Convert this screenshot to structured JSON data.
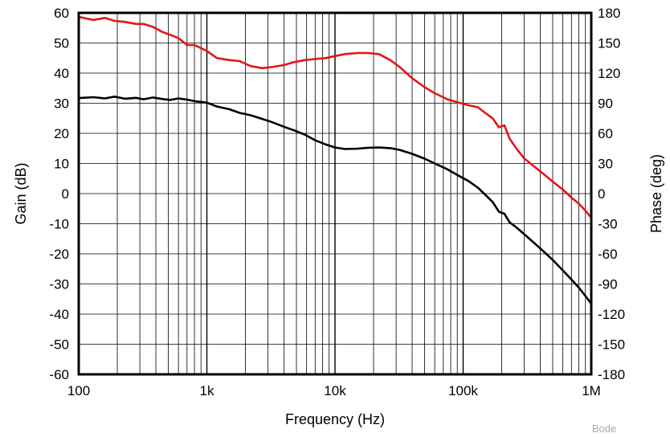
{
  "chart_data": {
    "type": "line",
    "title": "",
    "xlabel": "Frequency (Hz)",
    "ylabel": "Gain (dB)",
    "y2label": "Phase (deg)",
    "watermark": "Bode",
    "x_scale": "log",
    "xlim": [
      100,
      1000000
    ],
    "ylim": [
      -60,
      60
    ],
    "y2lim": [
      -180,
      180
    ],
    "grid": true,
    "x_ticks": [
      100,
      1000,
      10000,
      100000,
      1000000
    ],
    "x_tick_labels": [
      "100",
      "1k",
      "10k",
      "100k",
      "1M"
    ],
    "y_ticks": [
      60,
      50,
      40,
      30,
      20,
      10,
      0,
      -10,
      -20,
      -30,
      -40,
      -50,
      -60
    ],
    "y_tick_labels": [
      "60",
      "50",
      "40",
      "30",
      "20",
      "10",
      "0",
      "-10",
      "-20",
      "-30",
      "-40",
      "-50",
      "-60"
    ],
    "y2_ticks": [
      180,
      150,
      120,
      90,
      60,
      30,
      0,
      -30,
      -60,
      -90,
      -120,
      -150,
      -180
    ],
    "y2_tick_labels": [
      "180",
      "150",
      "120",
      "90",
      "60",
      "30",
      "0",
      "-30",
      "-60",
      "-90",
      "-120",
      "-150",
      "-180"
    ],
    "series": [
      {
        "axis": "left",
        "color": "#000000",
        "x": [
          100,
          130,
          160,
          190,
          230,
          280,
          320,
          380,
          450,
          520,
          600,
          700,
          800,
          1000,
          1200,
          1500,
          1800,
          2200,
          2700,
          3200,
          4000,
          4800,
          5800,
          7000,
          8500,
          10000,
          12000,
          15000,
          18000,
          22000,
          27000,
          32000,
          40000,
          50000,
          60000,
          75000,
          90000,
          110000,
          130000,
          150000,
          170000,
          190000,
          210000,
          230000,
          260000,
          300000,
          350000,
          420000,
          500000,
          600000,
          700000,
          800000,
          900000,
          1000000
        ],
        "values": [
          31.7,
          32.0,
          31.6,
          32.2,
          31.5,
          31.8,
          31.3,
          31.9,
          31.4,
          31.1,
          31.6,
          31.2,
          30.7,
          30.2,
          28.9,
          28.0,
          26.8,
          26.0,
          24.8,
          23.8,
          22.2,
          21.0,
          19.6,
          17.7,
          16.3,
          15.3,
          14.8,
          14.9,
          15.2,
          15.3,
          15.1,
          14.5,
          13.2,
          11.6,
          10.0,
          8.1,
          6.2,
          4.2,
          2.0,
          -0.5,
          -2.8,
          -6.0,
          -6.7,
          -9.5,
          -11.2,
          -13.5,
          -16.0,
          -19.0,
          -22.0,
          -25.5,
          -28.5,
          -31.2,
          -34.0,
          -36.5
        ]
      },
      {
        "axis": "right",
        "color": "#e3151a",
        "x": [
          100,
          130,
          160,
          190,
          230,
          280,
          320,
          380,
          450,
          520,
          600,
          700,
          800,
          1000,
          1200,
          1500,
          1800,
          2200,
          2700,
          3200,
          4000,
          4800,
          5800,
          7000,
          8500,
          10000,
          12000,
          15000,
          18000,
          22000,
          27000,
          32000,
          40000,
          50000,
          60000,
          75000,
          90000,
          110000,
          130000,
          150000,
          170000,
          190000,
          210000,
          230000,
          260000,
          300000,
          350000,
          420000,
          500000,
          600000,
          700000,
          800000,
          900000,
          1000000
        ],
        "values": [
          176,
          173,
          175,
          172,
          171,
          169,
          169,
          166,
          161,
          158,
          155,
          148,
          148,
          142,
          135,
          133,
          132,
          127,
          125,
          126,
          128,
          131,
          133,
          134,
          135,
          137,
          139,
          140,
          140,
          139,
          133,
          126,
          115,
          106,
          100,
          94,
          91,
          88,
          86,
          80,
          75,
          66,
          68,
          55,
          45,
          35,
          28,
          20,
          12,
          4,
          -4,
          -10,
          -17,
          -24
        ]
      }
    ]
  }
}
